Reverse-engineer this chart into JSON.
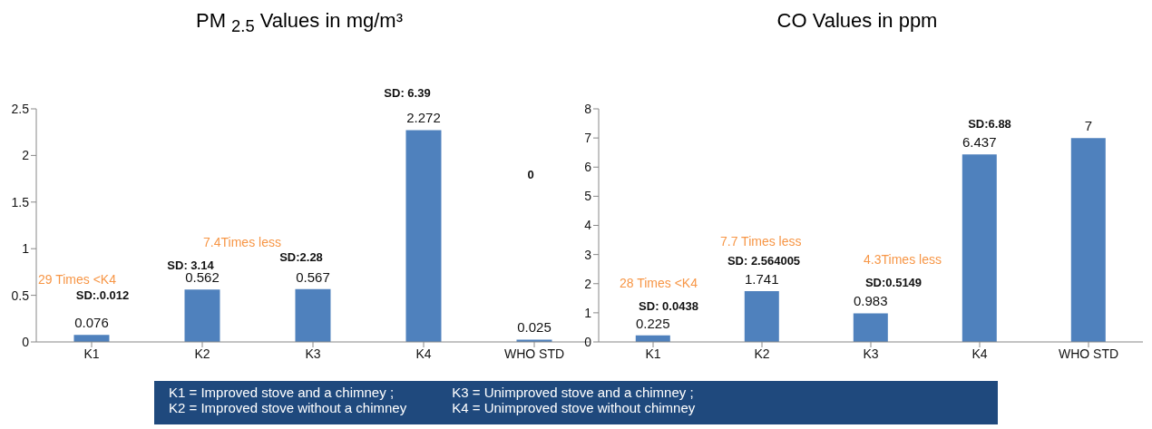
{
  "chart_data": [
    {
      "type": "bar",
      "title": "PM $_{2.5}$ Values in mg/m³",
      "categories": [
        "K1",
        "K2",
        "K3",
        "K4",
        "WHO STD"
      ],
      "values": [
        0.076,
        0.562,
        0.567,
        2.272,
        0.025
      ],
      "color": "#4f81bd",
      "ylim": [
        0,
        2.5
      ],
      "yticks": [
        0,
        0.5,
        1,
        1.5,
        2,
        2.5
      ],
      "data_labels": true,
      "annotations": [
        "SD:.0.012",
        "29 Times <K4",
        "SD: 3.14",
        "7.4Times less",
        "SD:2.28",
        "SD: 6.39",
        "0"
      ]
    },
    {
      "type": "bar",
      "title": "CO Values  in ppm",
      "categories": [
        "K1",
        "K2",
        "K3",
        "K4",
        "WHO STD"
      ],
      "values": [
        0.225,
        1.741,
        0.983,
        6.437,
        7
      ],
      "color": "#4f81bd",
      "ylim": [
        0,
        8
      ],
      "yticks": [
        0,
        1,
        2,
        3,
        4,
        5,
        6,
        7,
        8
      ],
      "data_labels": true,
      "annotations": [
        "SD: 0.0438",
        "28 Times <K4",
        "SD: 2.564005",
        "7.7 Times less",
        "SD:0.5149",
        "4.3Times less",
        "SD:6.88"
      ]
    },
    {
      "type": "other",
      "annotations": [
        "K1 = Improved stove and a chimney ;",
        "K2 = Improved stove without a chimney",
        "K3 = Unimproved stove and a chimney ;",
        "K4 = Unimproved stove without chimney"
      ]
    }
  ]
}
